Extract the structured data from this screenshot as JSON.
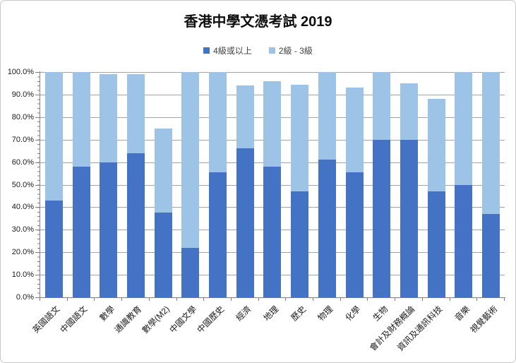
{
  "chart_data": {
    "type": "bar",
    "stacked": true,
    "title": "香港中學文憑考試 2019",
    "categories": [
      "英國語文",
      "中國語文",
      "數學",
      "通識教育",
      "數學(M2)",
      "中國文學",
      "中國歷史",
      "經濟",
      "地理",
      "歷史",
      "物理",
      "化學",
      "生物",
      "會計及財務概論",
      "資訊及通訊科技",
      "音樂",
      "視覺藝術"
    ],
    "series": [
      {
        "name": "4級或以上",
        "color": "#4472c4",
        "values": [
          43,
          58,
          60,
          64,
          37.5,
          22,
          55.5,
          66,
          58,
          47,
          61,
          55.5,
          70,
          70,
          47,
          50,
          37
        ]
      },
      {
        "name": "2級 - 3級",
        "color": "#9dc3e6",
        "values": [
          57,
          42,
          39,
          35,
          37.5,
          78,
          44.5,
          28,
          38,
          47.5,
          39,
          37.5,
          30,
          25,
          41,
          50,
          63
        ]
      }
    ],
    "stack_totals": [
      100,
      100,
      99,
      99,
      75,
      100,
      100,
      94,
      96,
      94.5,
      100,
      93,
      100,
      95,
      88,
      100,
      100
    ],
    "xlabel": "",
    "ylabel": "",
    "ylim": [
      0,
      100
    ],
    "ytick_labels": [
      "0.0%",
      "10.0%",
      "20.0%",
      "30.0%",
      "40.0%",
      "50.0%",
      "60.0%",
      "70.0%",
      "80.0%",
      "90.0%",
      "100.0%"
    ],
    "yminor_step_pct": 2,
    "grid": true,
    "legend_position": "top",
    "xlabel_rotation_deg": 45
  },
  "colors": {
    "series1": "#4472c4",
    "series2": "#9dc3e6",
    "gridline": "#a3a3a3",
    "axis": "#7f7f7f",
    "frame_border": "#c9c9c9"
  }
}
